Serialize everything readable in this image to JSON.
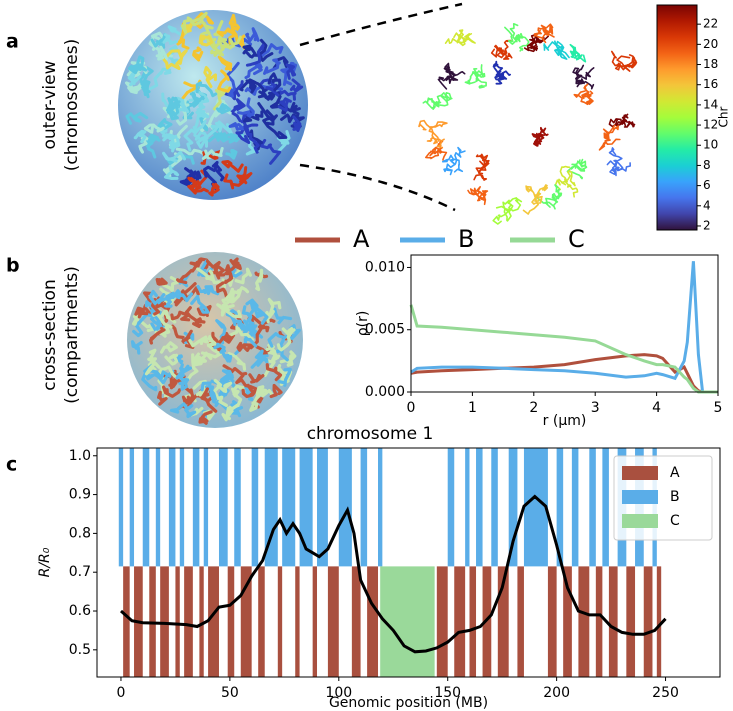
{
  "panel_labels": [
    "a",
    "b",
    "c"
  ],
  "panel_a_label": [
    "outer-view",
    "(chromosomes)"
  ],
  "panel_b_label": [
    "cross-section",
    "(compartments)"
  ],
  "chart_data": [
    {
      "type": "colorbar",
      "label": "Chr",
      "ylim": [
        1.6,
        23.9
      ],
      "yticks": [
        2,
        4,
        6,
        8,
        10,
        12,
        14,
        16,
        18,
        20,
        22
      ]
    },
    {
      "type": "line",
      "x": [
        0,
        0.1,
        0.5,
        1,
        1.5,
        2,
        2.5,
        3,
        3.5,
        3.8,
        4,
        4.1,
        4.3,
        4.45,
        4.5,
        4.6,
        4.68,
        4.75,
        5
      ],
      "series": [
        {
          "name": "A",
          "color": "#b0503d",
          "values": [
            0.0015,
            0.0016,
            0.0017,
            0.0018,
            0.0019,
            0.002,
            0.0022,
            0.0026,
            0.0029,
            0.003,
            0.0029,
            0.0027,
            0.0016,
            0.002,
            0.0015,
            0.0005,
            0.0001,
            0,
            0
          ]
        },
        {
          "name": "B",
          "color": "#5aade8",
          "values": [
            0.0016,
            0.0019,
            0.002,
            0.002,
            0.0019,
            0.0018,
            0.0017,
            0.0015,
            0.0012,
            0.0013,
            0.0015,
            0.0014,
            0.0011,
            0.0025,
            0.004,
            0.0105,
            0.003,
            0,
            0
          ]
        },
        {
          "name": "C",
          "color": "#96d996",
          "values": [
            0.007,
            0.0053,
            0.0052,
            0.005,
            0.0048,
            0.0046,
            0.0044,
            0.0041,
            0.003,
            0.0025,
            0.0022,
            0.0022,
            0.002,
            0.0012,
            0.001,
            0.0003,
            0,
            0,
            0
          ]
        }
      ],
      "xlim": [
        0,
        5
      ],
      "ylim": [
        0,
        0.011
      ],
      "xticks": [
        0,
        1,
        2,
        3,
        4,
        5
      ],
      "yticks": [
        {
          "value": 0,
          "label": "0.000"
        },
        {
          "value": 0.005,
          "label": "0.005"
        },
        {
          "value": 0.01,
          "label": "0.010"
        }
      ],
      "xlabel": "r (μm)",
      "ylabel": "ρ(r)"
    },
    {
      "type": "segments",
      "title": "chromosome 1",
      "series": [
        {
          "name": "A",
          "color": "#a9503f",
          "range": [
            0.43,
            0.715
          ],
          "segments": [
            [
              1,
              4
            ],
            [
              6,
              10
            ],
            [
              13,
              16
            ],
            [
              18,
              22
            ],
            [
              25,
              27
            ],
            [
              29,
              33
            ],
            [
              36,
              38
            ],
            [
              40,
              45
            ],
            [
              49,
              52
            ],
            [
              55,
              60
            ],
            [
              63,
              66
            ],
            [
              72,
              74
            ],
            [
              80,
              82
            ],
            [
              88,
              90
            ],
            [
              95,
              100
            ],
            [
              106,
              110
            ],
            [
              113,
              118
            ],
            [
              145,
              150
            ],
            [
              153,
              158
            ],
            [
              160,
              163
            ],
            [
              166,
              170
            ],
            [
              173,
              178
            ],
            [
              182,
              185
            ],
            [
              196,
              200
            ],
            [
              203,
              207
            ],
            [
              210,
              215
            ],
            [
              218,
              221
            ],
            [
              224,
              228
            ],
            [
              232,
              236
            ],
            [
              240,
              244
            ],
            [
              246,
              248
            ]
          ]
        },
        {
          "name": "B",
          "color": "#5aade8",
          "range": [
            0.715,
            1.02
          ],
          "segments": [
            [
              -1,
              1
            ],
            [
              4,
              6
            ],
            [
              10,
              13
            ],
            [
              16,
              18
            ],
            [
              22,
              25
            ],
            [
              27,
              29
            ],
            [
              33,
              36
            ],
            [
              38,
              40
            ],
            [
              45,
              49
            ],
            [
              52,
              55
            ],
            [
              60,
              63
            ],
            [
              66,
              72
            ],
            [
              74,
              80
            ],
            [
              82,
              88
            ],
            [
              90,
              95
            ],
            [
              100,
              106
            ],
            [
              110,
              113
            ],
            [
              118,
              120
            ],
            [
              150,
              153
            ],
            [
              158,
              160
            ],
            [
              163,
              166
            ],
            [
              170,
              173
            ],
            [
              178,
              182
            ],
            [
              185,
              196
            ],
            [
              200,
              203
            ],
            [
              207,
              210
            ],
            [
              215,
              218
            ],
            [
              221,
              224
            ],
            [
              228,
              232
            ],
            [
              236,
              240
            ],
            [
              244,
              246
            ]
          ]
        },
        {
          "name": "C",
          "color": "#9ad99a",
          "range": [
            0.43,
            0.715
          ],
          "segments": [
            [
              119,
              144
            ]
          ]
        }
      ],
      "curve": {
        "color": "#000000",
        "x": [
          0,
          5,
          10,
          20,
          30,
          35,
          40,
          45,
          50,
          55,
          60,
          65,
          70,
          73,
          76,
          79,
          82,
          85,
          88,
          91,
          95,
          100,
          104,
          107,
          110,
          115,
          120,
          125,
          130,
          135,
          140,
          145,
          150,
          155,
          160,
          165,
          170,
          175,
          180,
          185,
          190,
          195,
          200,
          205,
          210,
          215,
          220,
          225,
          230,
          235,
          240,
          245,
          250
        ],
        "values": [
          0.6,
          0.575,
          0.57,
          0.568,
          0.565,
          0.56,
          0.575,
          0.61,
          0.615,
          0.64,
          0.69,
          0.73,
          0.81,
          0.835,
          0.8,
          0.825,
          0.8,
          0.76,
          0.75,
          0.74,
          0.76,
          0.82,
          0.86,
          0.8,
          0.68,
          0.62,
          0.58,
          0.55,
          0.51,
          0.495,
          0.497,
          0.505,
          0.52,
          0.545,
          0.55,
          0.56,
          0.59,
          0.66,
          0.78,
          0.87,
          0.895,
          0.87,
          0.77,
          0.66,
          0.6,
          0.59,
          0.59,
          0.56,
          0.545,
          0.54,
          0.54,
          0.55,
          0.58
        ]
      },
      "xlim": [
        -11,
        275
      ],
      "ylim": [
        0.43,
        1.02
      ],
      "xticks": [
        0,
        50,
        100,
        150,
        200,
        250
      ],
      "yticks": [
        0.5,
        0.6,
        0.7,
        0.8,
        0.9,
        {
          "value": 1,
          "label": "1.0"
        }
      ],
      "xlabel": "Genomic position (MB)",
      "ylabel": "R/R₀",
      "legend": "upper right"
    }
  ]
}
